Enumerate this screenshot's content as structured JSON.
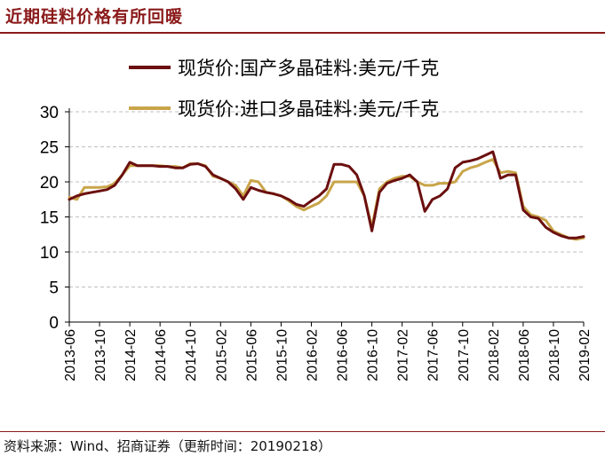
{
  "title": "近期硅料价格有所回暖",
  "source": "资料来源：Wind、招商证券（更新时间：20190218）",
  "colors": {
    "domestic": "#6B0F0F",
    "imported": "#C9A54A",
    "grid": "#BFBFBF",
    "accent": "#8B1A1A"
  },
  "chart_data": {
    "type": "line",
    "title": "",
    "xlabel": "",
    "ylabel": "",
    "ylim": [
      0,
      30
    ],
    "yticks": [
      "0",
      "5",
      "10",
      "15",
      "20",
      "25",
      "30"
    ],
    "xticks": [
      "2013-06",
      "2013-10",
      "2014-02",
      "2014-06",
      "2014-10",
      "2015-02",
      "2015-06",
      "2015-10",
      "2016-02",
      "2016-06",
      "2016-10",
      "2017-02",
      "2017-06",
      "2017-10",
      "2018-02",
      "2018-06",
      "2018-10",
      "2019-02"
    ],
    "grid": true,
    "legend": "top",
    "series": [
      {
        "name": "现货价:国产多晶硅料:美元/千克",
        "points": [
          [
            "2013-06",
            17.5
          ],
          [
            "2013-07",
            18.0
          ],
          [
            "2013-08",
            18.3
          ],
          [
            "2013-09",
            18.5
          ],
          [
            "2013-10",
            18.7
          ],
          [
            "2013-11",
            18.9
          ],
          [
            "2013-12",
            19.5
          ],
          [
            "2014-01",
            21.0
          ],
          [
            "2014-02",
            22.8
          ],
          [
            "2014-03",
            22.3
          ],
          [
            "2014-04",
            22.3
          ],
          [
            "2014-05",
            22.3
          ],
          [
            "2014-06",
            22.2
          ],
          [
            "2014-07",
            22.2
          ],
          [
            "2014-08",
            22.0
          ],
          [
            "2014-09",
            22.0
          ],
          [
            "2014-10",
            22.5
          ],
          [
            "2014-11",
            22.6
          ],
          [
            "2014-12",
            22.2
          ],
          [
            "2015-01",
            21.0
          ],
          [
            "2015-02",
            20.5
          ],
          [
            "2015-03",
            20.0
          ],
          [
            "2015-04",
            19.0
          ],
          [
            "2015-05",
            17.5
          ],
          [
            "2015-06",
            19.2
          ],
          [
            "2015-07",
            18.8
          ],
          [
            "2015-08",
            18.5
          ],
          [
            "2015-09",
            18.3
          ],
          [
            "2015-10",
            18.0
          ],
          [
            "2015-11",
            17.5
          ],
          [
            "2015-12",
            16.8
          ],
          [
            "2016-01",
            16.5
          ],
          [
            "2016-02",
            17.3
          ],
          [
            "2016-03",
            18.0
          ],
          [
            "2016-04",
            19.0
          ],
          [
            "2016-05",
            22.5
          ],
          [
            "2016-06",
            22.5
          ],
          [
            "2016-07",
            22.2
          ],
          [
            "2016-08",
            21.0
          ],
          [
            "2016-09",
            18.0
          ],
          [
            "2016-10",
            13.0
          ],
          [
            "2016-11",
            18.5
          ],
          [
            "2016-12",
            19.8
          ],
          [
            "2017-01",
            20.2
          ],
          [
            "2017-02",
            20.5
          ],
          [
            "2017-03",
            21.0
          ],
          [
            "2017-04",
            20.0
          ],
          [
            "2017-05",
            15.8
          ],
          [
            "2017-06",
            17.5
          ],
          [
            "2017-07",
            18.0
          ],
          [
            "2017-08",
            19.0
          ],
          [
            "2017-09",
            22.0
          ],
          [
            "2017-10",
            22.8
          ],
          [
            "2017-11",
            23.0
          ],
          [
            "2017-12",
            23.3
          ],
          [
            "2018-01",
            23.8
          ],
          [
            "2018-02",
            24.3
          ],
          [
            "2018-03",
            20.5
          ],
          [
            "2018-04",
            21.0
          ],
          [
            "2018-05",
            21.0
          ],
          [
            "2018-06",
            16.0
          ],
          [
            "2018-07",
            15.0
          ],
          [
            "2018-08",
            14.8
          ],
          [
            "2018-09",
            13.5
          ],
          [
            "2018-10",
            12.8
          ],
          [
            "2018-11",
            12.3
          ],
          [
            "2018-12",
            12.0
          ],
          [
            "2019-01",
            12.0
          ],
          [
            "2019-02",
            12.2
          ]
        ]
      },
      {
        "name": "现货价:进口多晶硅料:美元/千克",
        "points": [
          [
            "2013-06",
            17.8
          ],
          [
            "2013-07",
            17.5
          ],
          [
            "2013-08",
            19.2
          ],
          [
            "2013-09",
            19.2
          ],
          [
            "2013-10",
            19.2
          ],
          [
            "2013-11",
            19.3
          ],
          [
            "2013-12",
            19.8
          ],
          [
            "2014-01",
            21.0
          ],
          [
            "2014-02",
            22.3
          ],
          [
            "2014-03",
            22.3
          ],
          [
            "2014-04",
            22.3
          ],
          [
            "2014-05",
            22.3
          ],
          [
            "2014-06",
            22.3
          ],
          [
            "2014-07",
            22.2
          ],
          [
            "2014-08",
            22.2
          ],
          [
            "2014-09",
            22.0
          ],
          [
            "2014-10",
            22.6
          ],
          [
            "2014-11",
            22.6
          ],
          [
            "2014-12",
            22.3
          ],
          [
            "2015-01",
            20.8
          ],
          [
            "2015-02",
            20.5
          ],
          [
            "2015-03",
            20.0
          ],
          [
            "2015-04",
            19.5
          ],
          [
            "2015-05",
            18.0
          ],
          [
            "2015-06",
            20.2
          ],
          [
            "2015-07",
            20.0
          ],
          [
            "2015-08",
            18.5
          ],
          [
            "2015-09",
            18.3
          ],
          [
            "2015-10",
            18.0
          ],
          [
            "2015-11",
            17.3
          ],
          [
            "2015-12",
            16.5
          ],
          [
            "2016-01",
            16.0
          ],
          [
            "2016-02",
            16.5
          ],
          [
            "2016-03",
            17.0
          ],
          [
            "2016-04",
            18.0
          ],
          [
            "2016-05",
            20.0
          ],
          [
            "2016-06",
            20.0
          ],
          [
            "2016-07",
            20.0
          ],
          [
            "2016-08",
            20.0
          ],
          [
            "2016-09",
            18.0
          ],
          [
            "2016-10",
            13.5
          ],
          [
            "2016-11",
            19.0
          ],
          [
            "2016-12",
            20.0
          ],
          [
            "2017-01",
            20.5
          ],
          [
            "2017-02",
            20.8
          ],
          [
            "2017-03",
            20.8
          ],
          [
            "2017-04",
            20.0
          ],
          [
            "2017-05",
            19.5
          ],
          [
            "2017-06",
            19.5
          ],
          [
            "2017-07",
            19.8
          ],
          [
            "2017-08",
            19.8
          ],
          [
            "2017-09",
            20.0
          ],
          [
            "2017-10",
            21.5
          ],
          [
            "2017-11",
            22.0
          ],
          [
            "2017-12",
            22.3
          ],
          [
            "2018-01",
            22.8
          ],
          [
            "2018-02",
            23.2
          ],
          [
            "2018-03",
            21.3
          ],
          [
            "2018-04",
            21.5
          ],
          [
            "2018-05",
            21.3
          ],
          [
            "2018-06",
            16.5
          ],
          [
            "2018-07",
            15.3
          ],
          [
            "2018-08",
            15.0
          ],
          [
            "2018-09",
            14.5
          ],
          [
            "2018-10",
            13.0
          ],
          [
            "2018-11",
            12.5
          ],
          [
            "2018-12",
            12.0
          ],
          [
            "2019-01",
            11.8
          ],
          [
            "2019-02",
            12.0
          ]
        ]
      }
    ]
  }
}
